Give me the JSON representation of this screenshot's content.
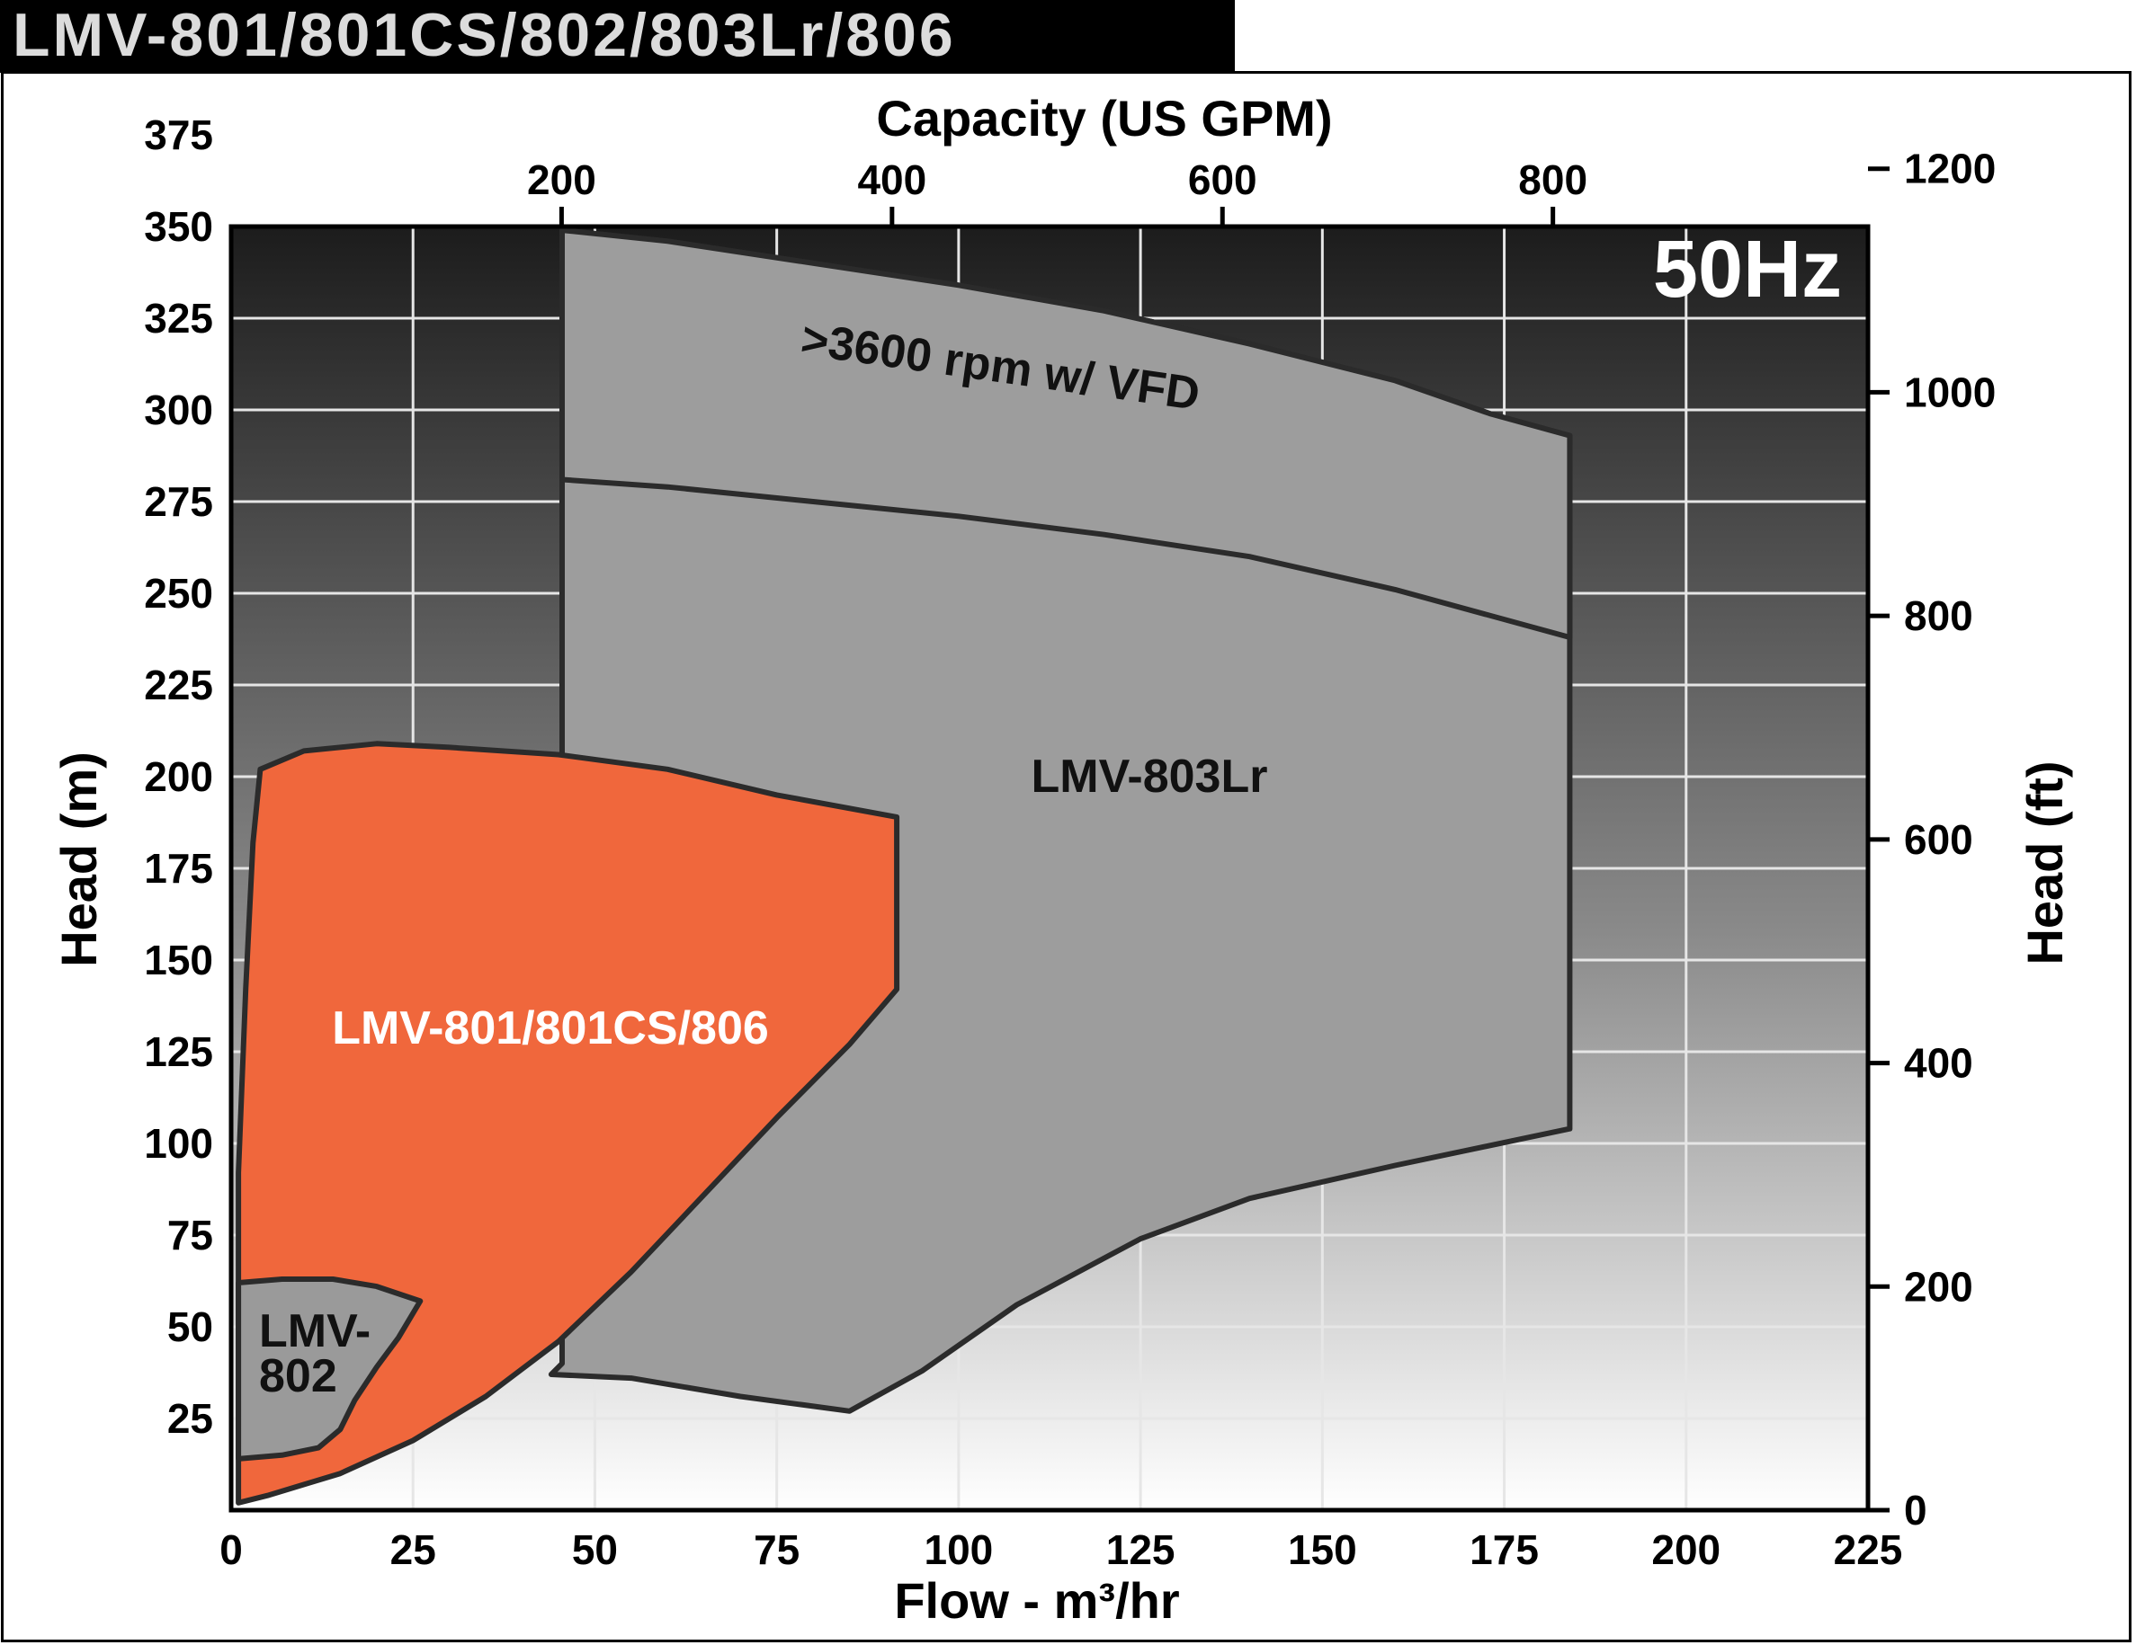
{
  "header": {
    "title": "LMV-801/801CS/802/803Lr/806"
  },
  "chart_data": {
    "type": "area",
    "frequency_label": "50Hz",
    "xlabel": "Flow - m³/hr",
    "x2label": "Capacity (US GPM)",
    "ylabel": "Head (m)",
    "y2label": "Head (ft)",
    "xlim": [
      0,
      225
    ],
    "ylim": [
      0,
      350
    ],
    "x2lim": [
      0,
      990.7
    ],
    "y2lim": [
      0,
      1148.3
    ],
    "x_ticks": [
      "0",
      "25",
      "50",
      "75",
      "100",
      "125",
      "150",
      "175",
      "200",
      "225"
    ],
    "y_ticks": [
      "25",
      "50",
      "75",
      "100",
      "125",
      "150",
      "175",
      "200",
      "225",
      "250",
      "275",
      "300",
      "325",
      "350",
      "375"
    ],
    "x2_ticks": [
      "200",
      "400",
      "600",
      "800"
    ],
    "y2_ticks": [
      "0",
      "200",
      "400",
      "600",
      "800",
      "1000",
      "1200"
    ],
    "grid": true,
    "colors": {
      "lmv801": "#f0673c",
      "lmv803": "#9d9d9d",
      "lmv802": "#9a9a9a",
      "outline": "#2b2b2b",
      "bg_top": "#1c1c1c",
      "bg_bottom": "#ffffff"
    },
    "series": [
      {
        "name": "LMV-803Lr",
        "boundary": [
          [
            45.5,
            349
          ],
          [
            60,
            346
          ],
          [
            80,
            340
          ],
          [
            100,
            334
          ],
          [
            120,
            327
          ],
          [
            140,
            318
          ],
          [
            160,
            308
          ],
          [
            173,
            299
          ],
          [
            184,
            293
          ],
          [
            184,
            104
          ],
          [
            160,
            94
          ],
          [
            140,
            85
          ],
          [
            125,
            74
          ],
          [
            108,
            56
          ],
          [
            95,
            38
          ],
          [
            85,
            27
          ],
          [
            70,
            31
          ],
          [
            55,
            36
          ],
          [
            44,
            37
          ],
          [
            45.5,
            40
          ]
        ]
      },
      {
        "name": ">3600 rpm w/ VFD",
        "boundary": [
          [
            45.5,
            349
          ],
          [
            60,
            346
          ],
          [
            80,
            340
          ],
          [
            100,
            334
          ],
          [
            120,
            327
          ],
          [
            140,
            318
          ],
          [
            160,
            308
          ],
          [
            173,
            299
          ],
          [
            184,
            293
          ],
          [
            184,
            238
          ],
          [
            160,
            251
          ],
          [
            140,
            260
          ],
          [
            120,
            266
          ],
          [
            100,
            271
          ],
          [
            80,
            275
          ],
          [
            60,
            279
          ],
          [
            45.5,
            281
          ]
        ]
      },
      {
        "name": "LMV-801/801CS/806",
        "boundary": [
          [
            4,
            202
          ],
          [
            10,
            207
          ],
          [
            20,
            209
          ],
          [
            30,
            208
          ],
          [
            45,
            206
          ],
          [
            60,
            202
          ],
          [
            75,
            195
          ],
          [
            91.5,
            189
          ],
          [
            91.5,
            142
          ],
          [
            85,
            127
          ],
          [
            75,
            107
          ],
          [
            65,
            86
          ],
          [
            55,
            65
          ],
          [
            45,
            46
          ],
          [
            35,
            31
          ],
          [
            25,
            19
          ],
          [
            15,
            10
          ],
          [
            5,
            4
          ],
          [
            1,
            2
          ],
          [
            1,
            92
          ],
          [
            2,
            142
          ],
          [
            3,
            182
          ]
        ]
      },
      {
        "name": "LMV-802",
        "boundary": [
          [
            1,
            62
          ],
          [
            7,
            63
          ],
          [
            14,
            63
          ],
          [
            20,
            61
          ],
          [
            26,
            57
          ],
          [
            23,
            47
          ],
          [
            20,
            39
          ],
          [
            17,
            30
          ],
          [
            15,
            22
          ],
          [
            12,
            17
          ],
          [
            7,
            15
          ],
          [
            1,
            14
          ]
        ]
      }
    ],
    "area_labels": {
      "lmv803": "LMV-803Lr",
      "vfd": ">3600 rpm w/ VFD",
      "lmv801": "LMV-801/801CS/806",
      "lmv802_line1": "LMV-",
      "lmv802_line2": "802"
    }
  }
}
